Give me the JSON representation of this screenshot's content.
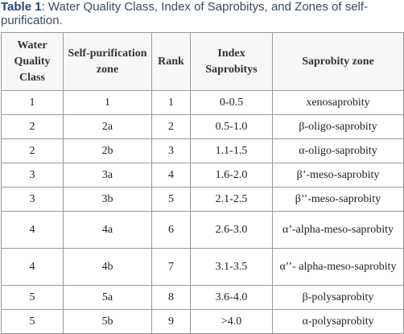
{
  "caption": {
    "label": "Table 1",
    "text": ": Water Quality Class, Index of Saprobitys, and Zones of self-purification."
  },
  "table": {
    "header": [
      "Water Quality Class",
      "Self-purification zone",
      "Rank",
      "Index Saprobitys",
      "Saprobity zone"
    ],
    "rows": [
      [
        "1",
        "1",
        "1",
        "0-0.5",
        "xenosaprobity"
      ],
      [
        "2",
        "2a",
        "2",
        "0.5-1.0",
        "β-oligo-saprobity"
      ],
      [
        "2",
        "2b",
        "3",
        "1.1-1.5",
        "α-oligo-saprobity"
      ],
      [
        "3",
        "3a",
        "4",
        "1.6-2.0",
        "β’-meso-saprobity"
      ],
      [
        "3",
        "3b",
        "5",
        "2.1-2.5",
        "β’’-meso-saprobity"
      ],
      [
        "4",
        "4a",
        "6",
        "2.6-3.0",
        "α’-alpha-meso-saprobity"
      ],
      [
        "4",
        "4b",
        "7",
        "3.1-3.5",
        "α’’- alpha-meso-saprobity"
      ],
      [
        "5",
        "5a",
        "8",
        "3.6-4.0",
        "β-polysaprobity"
      ],
      [
        "5",
        "5b",
        "9",
        ">4.0",
        "α-polysaprobity"
      ]
    ]
  }
}
